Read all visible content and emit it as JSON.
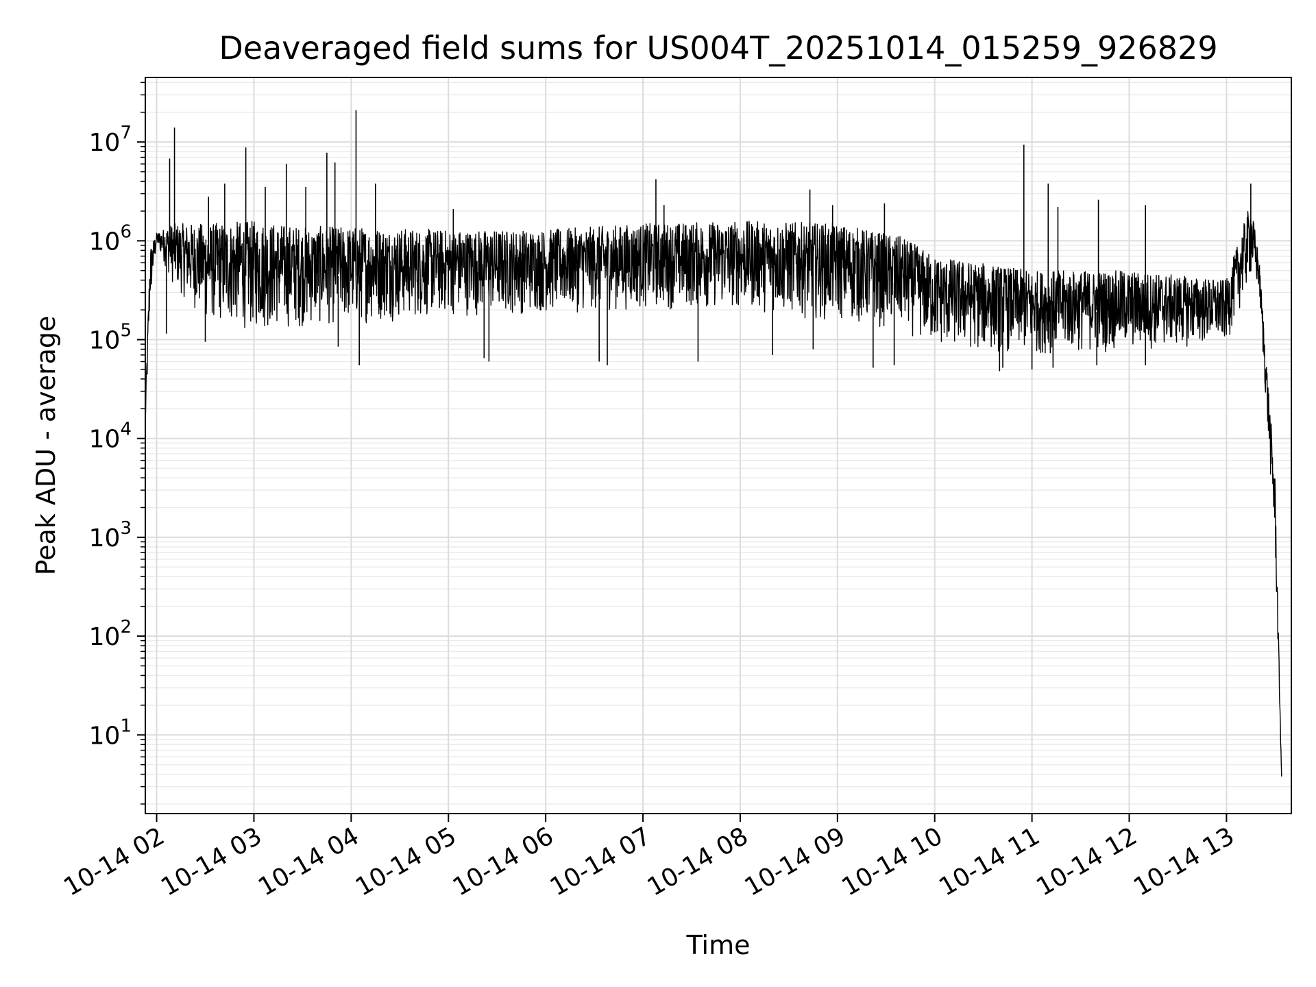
{
  "chart_data": {
    "type": "line",
    "title": "Deaveraged field sums for US004T_20251014_015259_926829",
    "xlabel": "Time",
    "ylabel": "Peak ADU - average",
    "yscale": "log",
    "ylim": [
      1.6,
      45000000
    ],
    "xlim": [
      "2025-10-14 01:53:00",
      "2025-10-14 13:40:00"
    ],
    "grid": {
      "major": true,
      "minor": true
    },
    "line_color": "#000000",
    "x_ticks": [
      {
        "value": "2025-10-14 02:00",
        "label": "10-14 02"
      },
      {
        "value": "2025-10-14 03:00",
        "label": "10-14 03"
      },
      {
        "value": "2025-10-14 04:00",
        "label": "10-14 04"
      },
      {
        "value": "2025-10-14 05:00",
        "label": "10-14 05"
      },
      {
        "value": "2025-10-14 06:00",
        "label": "10-14 06"
      },
      {
        "value": "2025-10-14 07:00",
        "label": "10-14 07"
      },
      {
        "value": "2025-10-14 08:00",
        "label": "10-14 08"
      },
      {
        "value": "2025-10-14 09:00",
        "label": "10-14 09"
      },
      {
        "value": "2025-10-14 10:00",
        "label": "10-14 10"
      },
      {
        "value": "2025-10-14 11:00",
        "label": "10-14 11"
      },
      {
        "value": "2025-10-14 12:00",
        "label": "10-14 12"
      },
      {
        "value": "2025-10-14 13:00",
        "label": "10-14 13"
      }
    ],
    "y_ticks": [
      {
        "value": 10,
        "base": "10",
        "exp": "1"
      },
      {
        "value": 100,
        "base": "10",
        "exp": "2"
      },
      {
        "value": 1000,
        "base": "10",
        "exp": "3"
      },
      {
        "value": 10000,
        "base": "10",
        "exp": "4"
      },
      {
        "value": 100000,
        "base": "10",
        "exp": "5"
      },
      {
        "value": 1000000,
        "base": "10",
        "exp": "6"
      },
      {
        "value": 10000000,
        "base": "10",
        "exp": "7"
      }
    ],
    "series": [
      {
        "envelope": [
          {
            "x": "2025-10-14 01:53",
            "low": 10500,
            "high": 22000
          },
          {
            "x": "2025-10-14 01:56",
            "low": 200000,
            "high": 900000
          },
          {
            "x": "2025-10-14 02:00",
            "low": 900000,
            "high": 1200000
          },
          {
            "x": "2025-10-14 02:10",
            "low": 350000,
            "high": 1500000
          },
          {
            "x": "2025-10-14 02:30",
            "low": 150000,
            "high": 1500000
          },
          {
            "x": "2025-10-14 03:00",
            "low": 120000,
            "high": 1600000
          },
          {
            "x": "2025-10-14 03:30",
            "low": 130000,
            "high": 1400000
          },
          {
            "x": "2025-10-14 04:00",
            "low": 140000,
            "high": 1400000
          },
          {
            "x": "2025-10-14 05:00",
            "low": 170000,
            "high": 1300000
          },
          {
            "x": "2025-10-14 06:00",
            "low": 180000,
            "high": 1300000
          },
          {
            "x": "2025-10-14 07:00",
            "low": 200000,
            "high": 1500000
          },
          {
            "x": "2025-10-14 08:00",
            "low": 200000,
            "high": 1600000
          },
          {
            "x": "2025-10-14 09:00",
            "low": 150000,
            "high": 1500000
          },
          {
            "x": "2025-10-14 09:40",
            "low": 120000,
            "high": 1100000
          },
          {
            "x": "2025-10-14 10:00",
            "low": 80000,
            "high": 700000
          },
          {
            "x": "2025-10-14 11:00",
            "low": 70000,
            "high": 500000
          },
          {
            "x": "2025-10-14 12:00",
            "low": 75000,
            "high": 500000
          },
          {
            "x": "2025-10-14 13:00",
            "low": 90000,
            "high": 400000
          },
          {
            "x": "2025-10-14 13:15",
            "low": 400000,
            "high": 2500000
          },
          {
            "x": "2025-10-14 13:20",
            "low": 300000,
            "high": 700000
          },
          {
            "x": "2025-10-14 13:30",
            "low": 700,
            "high": 4000
          },
          {
            "x": "2025-10-14 13:34",
            "low": 3.8,
            "high": 3.8
          }
        ],
        "spikes": [
          {
            "x": "2025-10-14 02:08",
            "y": 6800000
          },
          {
            "x": "2025-10-14 02:11",
            "y": 14000000
          },
          {
            "x": "2025-10-14 02:32",
            "y": 2800000
          },
          {
            "x": "2025-10-14 02:42",
            "y": 3800000
          },
          {
            "x": "2025-10-14 02:55",
            "y": 8800000
          },
          {
            "x": "2025-10-14 03:07",
            "y": 3500000
          },
          {
            "x": "2025-10-14 03:20",
            "y": 6000000
          },
          {
            "x": "2025-10-14 03:32",
            "y": 3500000
          },
          {
            "x": "2025-10-14 03:45",
            "y": 7800000
          },
          {
            "x": "2025-10-14 03:50",
            "y": 6200000
          },
          {
            "x": "2025-10-14 04:03",
            "y": 21000000
          },
          {
            "x": "2025-10-14 04:15",
            "y": 3800000
          },
          {
            "x": "2025-10-14 05:03",
            "y": 2100000
          },
          {
            "x": "2025-10-14 07:08",
            "y": 4200000
          },
          {
            "x": "2025-10-14 07:13",
            "y": 2300000
          },
          {
            "x": "2025-10-14 08:43",
            "y": 3300000
          },
          {
            "x": "2025-10-14 08:57",
            "y": 2300000
          },
          {
            "x": "2025-10-14 09:29",
            "y": 2400000
          },
          {
            "x": "2025-10-14 10:55",
            "y": 9400000
          },
          {
            "x": "2025-10-14 11:10",
            "y": 3800000
          },
          {
            "x": "2025-10-14 11:16",
            "y": 2200000
          },
          {
            "x": "2025-10-14 11:41",
            "y": 2600000
          },
          {
            "x": "2025-10-14 12:10",
            "y": 2300000
          },
          {
            "x": "2025-10-14 13:15",
            "y": 3800000
          }
        ],
        "dips": [
          {
            "x": "2025-10-14 02:06",
            "y": 115000
          },
          {
            "x": "2025-10-14 02:30",
            "y": 95000
          },
          {
            "x": "2025-10-14 03:52",
            "y": 85000
          },
          {
            "x": "2025-10-14 04:05",
            "y": 55000
          },
          {
            "x": "2025-10-14 05:22",
            "y": 65000
          },
          {
            "x": "2025-10-14 05:25",
            "y": 60000
          },
          {
            "x": "2025-10-14 06:33",
            "y": 60000
          },
          {
            "x": "2025-10-14 06:38",
            "y": 55000
          },
          {
            "x": "2025-10-14 07:34",
            "y": 60000
          },
          {
            "x": "2025-10-14 08:20",
            "y": 70000
          },
          {
            "x": "2025-10-14 08:45",
            "y": 80000
          },
          {
            "x": "2025-10-14 09:22",
            "y": 52000
          },
          {
            "x": "2025-10-14 09:35",
            "y": 55000
          },
          {
            "x": "2025-10-14 10:40",
            "y": 48000
          },
          {
            "x": "2025-10-14 10:42",
            "y": 52000
          },
          {
            "x": "2025-10-14 11:00",
            "y": 50000
          },
          {
            "x": "2025-10-14 11:13",
            "y": 52000
          },
          {
            "x": "2025-10-14 11:40",
            "y": 55000
          },
          {
            "x": "2025-10-14 12:10",
            "y": 55000
          }
        ]
      }
    ]
  }
}
